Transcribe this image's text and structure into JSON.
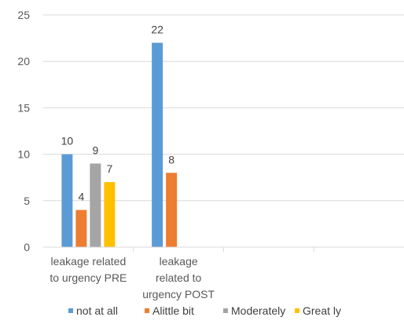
{
  "chart_data": {
    "type": "bar",
    "title": "",
    "xlabel": "",
    "ylabel": "",
    "ylim": [
      0,
      25
    ],
    "yticks": [
      0,
      5,
      10,
      15,
      20,
      25
    ],
    "grid": true,
    "legend_position": "bottom",
    "categories": [
      [
        "leakage related",
        "to urgency PRE"
      ],
      [
        "leakage",
        "related to",
        "urgency POST"
      ],
      [
        ""
      ],
      [
        ""
      ]
    ],
    "series": [
      {
        "name": "not at all",
        "color": "#5b9bd5",
        "values": [
          10,
          22,
          null,
          null
        ]
      },
      {
        "name": "Alittle bit",
        "color": "#ed7d31",
        "values": [
          4,
          8,
          null,
          null
        ]
      },
      {
        "name": "Moderately",
        "color": "#a5a5a5",
        "values": [
          9,
          null,
          null,
          null
        ]
      },
      {
        "name": "Great ly",
        "color": "#ffc000",
        "values": [
          7,
          null,
          null,
          null
        ]
      }
    ]
  }
}
